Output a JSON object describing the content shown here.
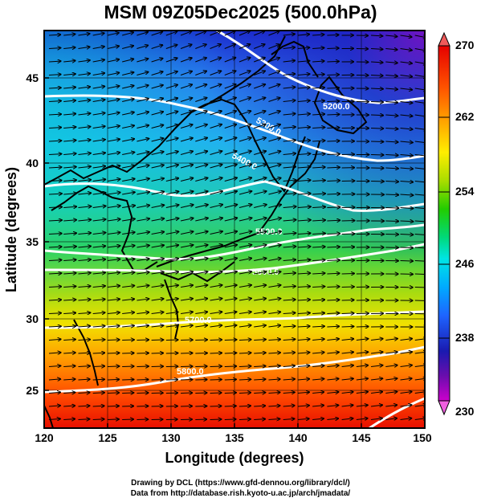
{
  "title": "MSM 09Z05Dec2025 (500.0hPa)",
  "x_axis": {
    "label": "Longitude (degrees)",
    "ticks": [
      "120",
      "125",
      "130",
      "135",
      "140",
      "145",
      "150"
    ]
  },
  "y_axis": {
    "label": "Latitude  (degrees)",
    "ticks": [
      "25",
      "30",
      "35",
      "40",
      "45"
    ]
  },
  "colorbar": {
    "ticks": [
      "270",
      "262",
      "254",
      "246",
      "238",
      "230"
    ],
    "colors": [
      "#cc00cc",
      "#6a0dad",
      "#1a1ab0",
      "#1e64ff",
      "#00aaff",
      "#00e5e5",
      "#00d97a",
      "#22cc00",
      "#aadd00",
      "#ffee00",
      "#ffaa00",
      "#ff5500",
      "#e60000"
    ]
  },
  "contours": [
    {
      "label": "5200.0"
    },
    {
      "label": "5300.0"
    },
    {
      "label": "5400.0"
    },
    {
      "label": "5500.0"
    },
    {
      "label": "5600.0"
    },
    {
      "label": "5700.0"
    },
    {
      "label": "5800.0"
    }
  ],
  "credits": {
    "line1": "Drawing by DCL (https://www.gfd-dennou.org/library/dcl/)",
    "line2": "Data from http://database.rish.kyoto-u.ac.jp/arch/jmadata/"
  }
}
